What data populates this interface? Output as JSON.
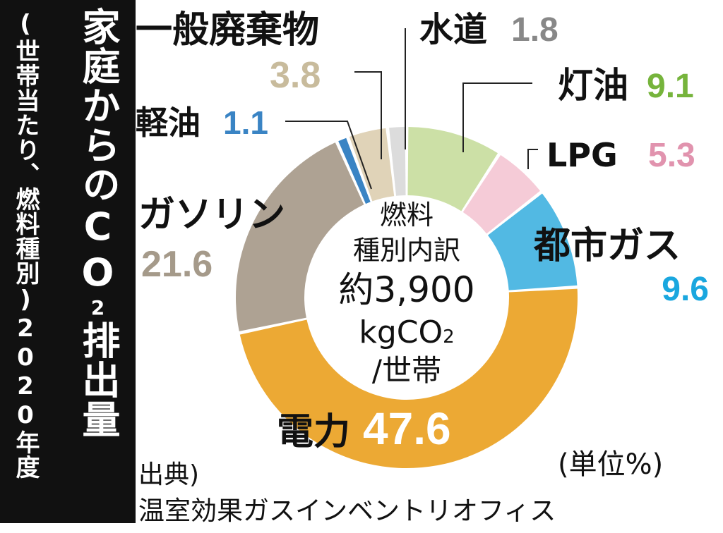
{
  "title": {
    "main": "家庭からのCO",
    "subscript": "2",
    "main_end": "排出量",
    "sub": "(世帯当たり、燃料種別)2020年度"
  },
  "center": {
    "line1": "燃料",
    "line2": "種別内訳",
    "line3": "約3,900",
    "line4": "kgCO",
    "line4_sub": "2",
    "line5": "/世帯"
  },
  "footer": {
    "source_label": "出典)",
    "source_name": "温室効果ガスインベントリオフィス",
    "unit": "(単位%)"
  },
  "chart_data": {
    "type": "pie",
    "style": "donut",
    "categories": [
      "電力",
      "ガソリン",
      "軽油",
      "一般廃棄物",
      "水道",
      "灯油",
      "LPG",
      "都市ガス"
    ],
    "values": [
      47.6,
      21.6,
      1.1,
      3.8,
      1.8,
      9.1,
      5.3,
      9.6
    ],
    "value_labels": [
      "47.6",
      "21.6",
      "1.1",
      "3.8",
      "1.8",
      "9.1",
      "5.3",
      "9.6"
    ],
    "colors": [
      "#eca934",
      "#aea293",
      "#3a84c4",
      "#e0d3b8",
      "#dcdcdc",
      "#cce0a6",
      "#f5cbd7",
      "#52b9e3"
    ],
    "label_colors": [
      "#ffffff",
      "#a59a8a",
      "#3a84c4",
      "#c8bb9c",
      "#888888",
      "#76b43c",
      "#e193ae",
      "#1aa7df"
    ],
    "unit": "%"
  }
}
